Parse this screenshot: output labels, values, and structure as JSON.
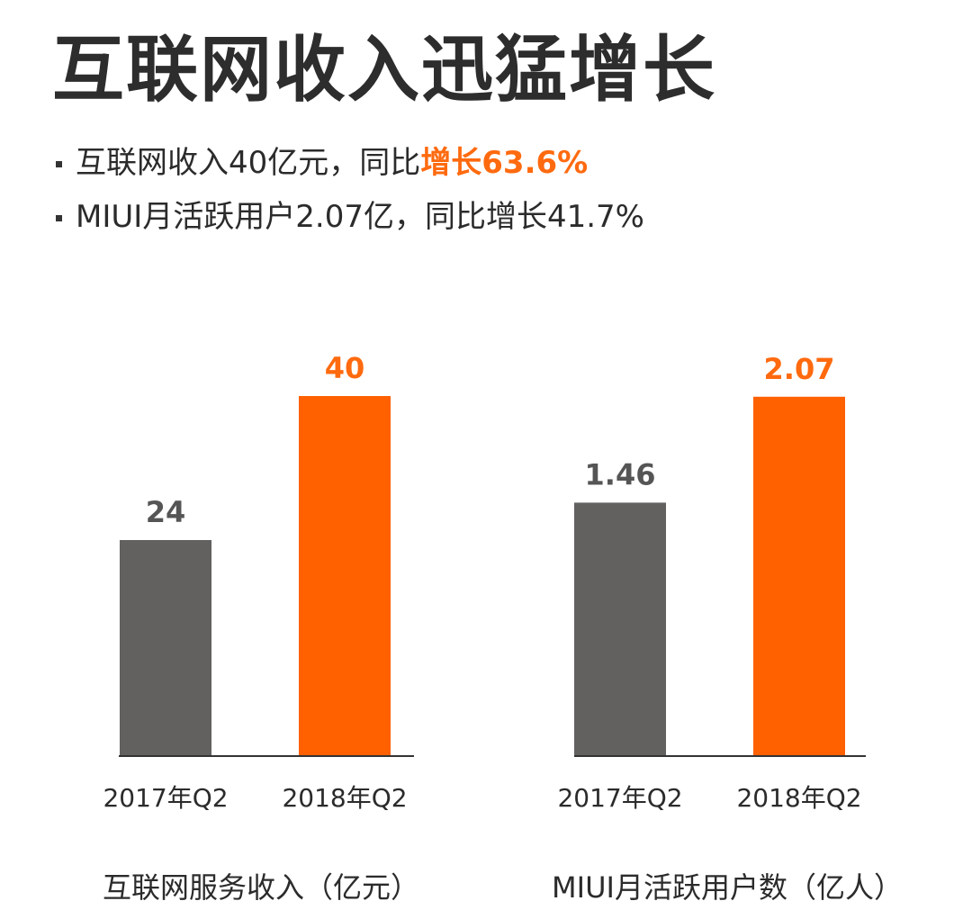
{
  "headline": "互联网收入迅猛增长",
  "bullets": [
    {
      "prefix": "互联网收入40亿元，同比",
      "highlight": "增长63.6%",
      "suffix": ""
    },
    {
      "prefix": "MIUI月活跃用户2.07亿，同比增长41.7%",
      "highlight": "",
      "suffix": ""
    }
  ],
  "colors": {
    "prev": "#636060",
    "curr": "#ff6000",
    "axis": "#333333",
    "curr_label": "#ff6a0f",
    "prev_label": "#555555"
  },
  "chart_data": [
    {
      "type": "bar",
      "title": "互联网服务收入（亿元）",
      "categories": [
        "2017年Q2",
        "2018年Q2"
      ],
      "values": [
        24,
        40
      ],
      "data_labels": [
        "24",
        "40"
      ],
      "ylim": [
        0,
        54
      ]
    },
    {
      "type": "bar",
      "title": "MIUI月活跃用户数（亿人）",
      "categories": [
        "2017年Q2",
        "2018年Q2"
      ],
      "values": [
        1.46,
        2.07
      ],
      "data_labels": [
        "1.46",
        "2.07"
      ],
      "ylim": [
        0,
        2.8
      ]
    }
  ]
}
